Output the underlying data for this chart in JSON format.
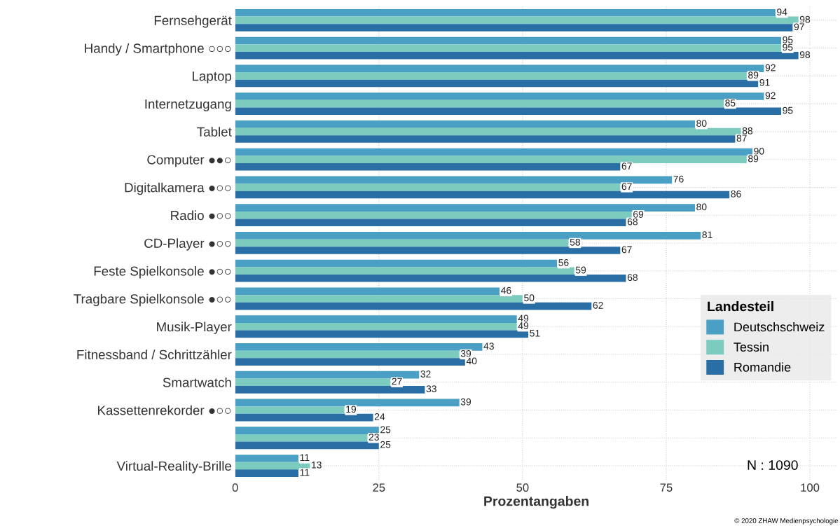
{
  "chart_data": {
    "type": "bar",
    "orientation": "horizontal",
    "xlabel": "Prozentangaben",
    "legend_title": "Landesteil",
    "legend": "right",
    "grid": true,
    "data_labels": true,
    "categories": [
      "Fernsehgerät",
      "Handy / Smartphone ○○○",
      "Laptop",
      "Internetzugang",
      "Tablet",
      "Computer ●●○",
      "Digitalkamera ●○○",
      "Radio ●○○",
      "CD-Player ●○○",
      "Feste Spielkonsole ●○○",
      "Tragbare Spielkonsole ●○○",
      "Musik-Player",
      "Fitnessband / Schrittzähler",
      "Smartwatch",
      "Kassettenrekorder ●○○",
      null,
      "Virtual-Reality-Brille"
    ],
    "series": [
      {
        "name": "Deutschschweiz",
        "color": "#4a9fc4",
        "values": [
          94,
          95,
          92,
          92,
          80,
          90,
          76,
          80,
          81,
          56,
          46,
          49,
          43,
          32,
          39,
          25,
          11
        ]
      },
      {
        "name": "Tessin",
        "color": "#7ccbbf",
        "values": [
          98,
          95,
          89,
          85,
          88,
          89,
          67,
          69,
          58,
          59,
          50,
          49,
          39,
          27,
          19,
          23,
          13
        ]
      },
      {
        "name": "Romandie",
        "color": "#2a6ea6",
        "values": [
          97,
          98,
          91,
          95,
          87,
          67,
          86,
          68,
          67,
          68,
          62,
          51,
          40,
          33,
          24,
          25,
          11
        ]
      }
    ],
    "xlim": [
      0,
      104.8
    ],
    "xticks": [
      0,
      25,
      50,
      75,
      100
    ],
    "annotations": [
      "N : 1090",
      "© 2020 ZHAW Medienpsychologie"
    ]
  }
}
